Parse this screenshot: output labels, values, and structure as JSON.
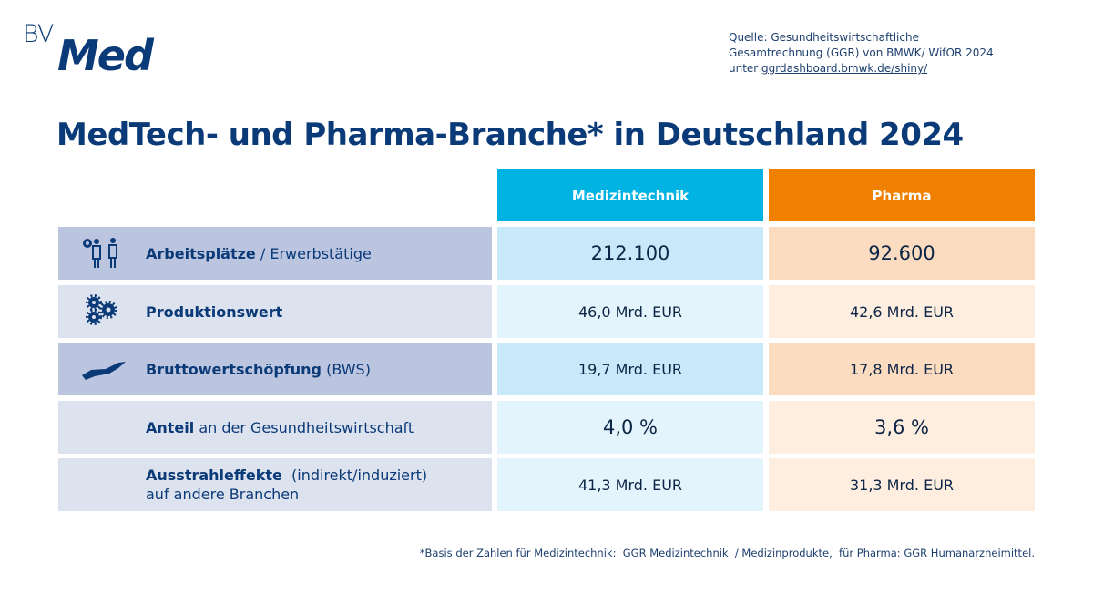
{
  "logo": {
    "bv": "BV",
    "med": "Med"
  },
  "source": {
    "line1": "Quelle: Gesundheitswirtschaftliche",
    "line2": "Gesamtrechnung (GGR) von BMWK/ WifOR 2024",
    "prefix": "unter ",
    "link": "ggrdashboard.bmwk.de/shiny/"
  },
  "title": "MedTech- und Pharma-Branche* in Deutschland 2024",
  "columns": {
    "medtech": "Medizintechnik",
    "pharma": "Pharma"
  },
  "colors": {
    "medtech": "#00b3e3",
    "pharma": "#ef8000",
    "text": "#0b3a78"
  },
  "rows": [
    {
      "icon": "workers-gear-icon",
      "bold": "Arbeitsplätze",
      "rest": " / Erwerbstätige",
      "line2": "",
      "medtech": "212.100",
      "pharma": "92.600"
    },
    {
      "icon": "gears-icon",
      "bold": "Produktionswert",
      "rest": "",
      "line2": "",
      "medtech": "46,0 Mrd. EUR",
      "pharma": "42,6 Mrd. EUR"
    },
    {
      "icon": "hand-icon",
      "bold": "Bruttowertschöpfung",
      "rest": " (BWS)",
      "line2": "",
      "medtech": "19,7 Mrd. EUR",
      "pharma": "17,8 Mrd. EUR"
    },
    {
      "icon": "",
      "bold": "Anteil",
      "rest": " an der Gesundheitswirtschaft",
      "line2": "",
      "medtech": "4,0 %",
      "pharma": "3,6 %"
    },
    {
      "icon": "",
      "bold": "Ausstrahleffekte",
      "rest": "  (indirekt/induziert)",
      "line2": "auf andere Branchen",
      "medtech": "41,3 Mrd. EUR",
      "pharma": "31,3 Mrd. EUR"
    }
  ],
  "footnote": "*Basis der Zahlen für Medizintechnik:  GGR Medizintechnik  / Medizinprodukte,  für Pharma: GGR Humanarzneimittel."
}
